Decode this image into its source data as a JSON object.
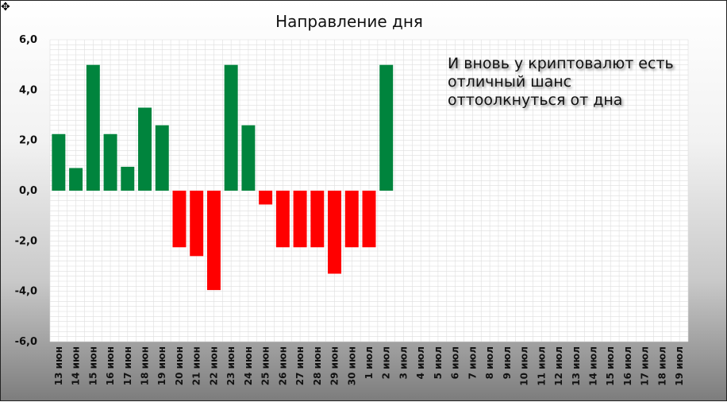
{
  "chart_data": {
    "type": "bar",
    "title": "Направление дня",
    "annotation": "И вновь у криптовалют есть отличный шанс оттоолкнуться от дна",
    "categories": [
      "13 июн",
      "14 июн",
      "15 июн",
      "16 июн",
      "17 июн",
      "18 июн",
      "19 июн",
      "20 июн",
      "21 июн",
      "22 июн",
      "23 июн",
      "24 июн",
      "25 июн",
      "26 июн",
      "27 июн",
      "28 июн",
      "29 июн",
      "30 июн",
      "1 июл",
      "2 июл",
      "3 июл",
      "4 июл",
      "5 июл",
      "6 июл",
      "7 июл",
      "8 июл",
      "9 июл",
      "10 июл",
      "11 июл",
      "12 июл",
      "13 июл",
      "14 июл",
      "15 июл",
      "16 июл",
      "17 июл",
      "18 июл",
      "19 июл"
    ],
    "values": [
      2.25,
      0.9,
      5.0,
      2.25,
      0.95,
      3.3,
      2.6,
      -2.25,
      -2.6,
      -3.95,
      5.0,
      2.6,
      -0.55,
      -2.25,
      -2.25,
      -2.25,
      -3.3,
      -2.25,
      -2.25,
      5.0,
      null,
      null,
      null,
      null,
      null,
      null,
      null,
      null,
      null,
      null,
      null,
      null,
      null,
      null,
      null,
      null,
      null
    ],
    "ylim": [
      -6,
      6
    ],
    "yticks": [
      6,
      4,
      2,
      0,
      -2,
      -4,
      -6
    ],
    "ytick_labels": [
      "6,0",
      "4,0",
      "2,0",
      "0,0",
      "-2,0",
      "-4,0",
      "-6,0"
    ],
    "grid": true,
    "colors": {
      "positive": "#00843d",
      "negative": "#ff0000",
      "grid": "#dedede",
      "plot_bg": "#ffffff"
    },
    "xlabel": "",
    "ylabel": ""
  }
}
